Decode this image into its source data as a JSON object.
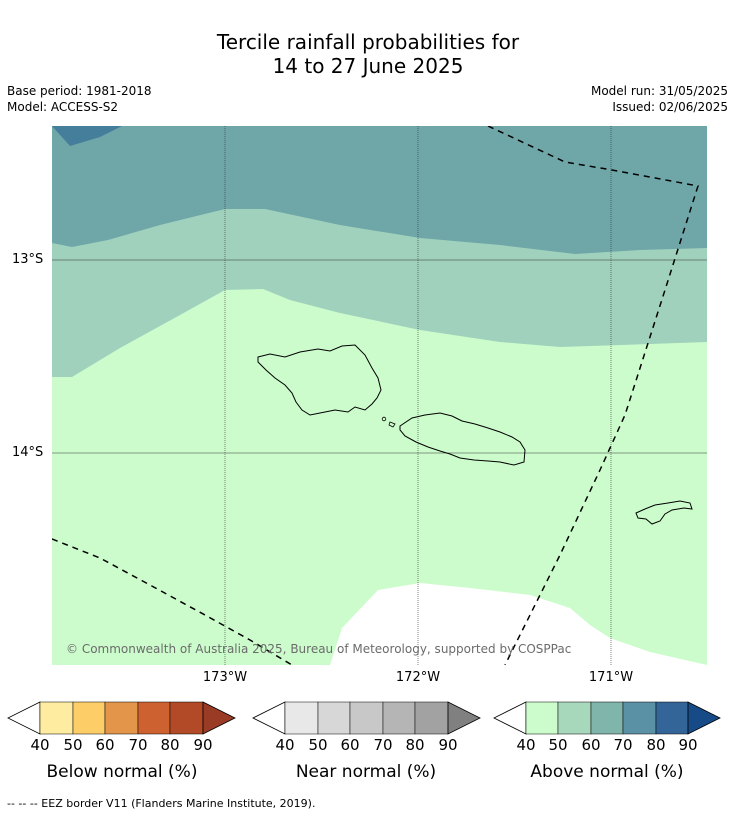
{
  "header": {
    "title_line1": "Tercile rainfall probabilities for",
    "title_line2": "14 to 27 June 2025",
    "base_period": "Base period: 1981-2018",
    "model": "Model: ACCESS-S2",
    "model_run": "Model run: 31/05/2025",
    "issued": "Issued: 02/06/2025"
  },
  "map": {
    "lat_labels": [
      "13°S",
      "14°S"
    ],
    "lon_labels": [
      "173°W",
      "172°W",
      "171°W"
    ],
    "copyright": "© Commonwealth of Australia 2025, Bureau of Meteorology, supported by COSPPac",
    "colors": {
      "above_50_60": "#9fd1bd",
      "above_60_70": "#6fa6a8",
      "above_70_80": "#457e9b",
      "above_40_50": "#ccfccc",
      "no_signal": "#ffffff"
    }
  },
  "colorbars": {
    "ticks": [
      "40",
      "50",
      "60",
      "70",
      "80",
      "90"
    ],
    "below": {
      "label": "Below normal (%)",
      "colors": [
        "#feeca0",
        "#fdcd68",
        "#e3964a",
        "#cd6130",
        "#b34a27",
        "#993b25"
      ]
    },
    "near": {
      "label": "Near normal (%)",
      "colors": [
        "#e8e8e8",
        "#d7d7d7",
        "#c8c8c8",
        "#b5b5b5",
        "#a2a2a2",
        "#808080"
      ]
    },
    "above": {
      "label": "Above normal (%)",
      "colors": [
        "#ccfccc",
        "#a8d8bc",
        "#80b5ac",
        "#5b91a5",
        "#336598",
        "#164b87"
      ]
    }
  },
  "footnote": "--  --  -- EEZ border V11 (Flanders Marine Institute, 2019)."
}
